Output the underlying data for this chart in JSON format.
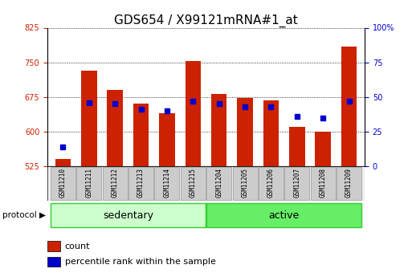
{
  "title": "GDS654 / X99121mRNA#1_at",
  "samples": [
    "GSM11210",
    "GSM11211",
    "GSM11212",
    "GSM11213",
    "GSM11214",
    "GSM11215",
    "GSM11204",
    "GSM11205",
    "GSM11206",
    "GSM11207",
    "GSM11208",
    "GSM11209"
  ],
  "groups": [
    "sedentary",
    "sedentary",
    "sedentary",
    "sedentary",
    "sedentary",
    "sedentary",
    "active",
    "active",
    "active",
    "active",
    "active",
    "active"
  ],
  "red_values": [
    540,
    732,
    690,
    660,
    640,
    752,
    682,
    672,
    667,
    610,
    600,
    784
  ],
  "blue_values_pct": [
    14,
    46,
    45,
    41,
    40,
    47,
    45,
    43,
    43,
    36,
    35,
    47
  ],
  "ylim_left": [
    525,
    825
  ],
  "ylim_right": [
    0,
    100
  ],
  "yticks_left": [
    525,
    600,
    675,
    750,
    825
  ],
  "yticks_right": [
    0,
    25,
    50,
    75,
    100
  ],
  "bar_color": "#cc2200",
  "dot_color": "#0000cc",
  "baseline": 525,
  "bar_width": 0.6,
  "title_fontsize": 11,
  "tick_fontsize": 7,
  "legend_fontsize": 8,
  "left_tick_color": "#cc2200",
  "right_tick_color": "#0000cc",
  "sed_color": "#ccffcc",
  "act_color": "#66ee66",
  "border_color": "#33cc33",
  "label_bg": "#cccccc",
  "figsize": [
    5.13,
    3.45
  ],
  "dpi": 100
}
